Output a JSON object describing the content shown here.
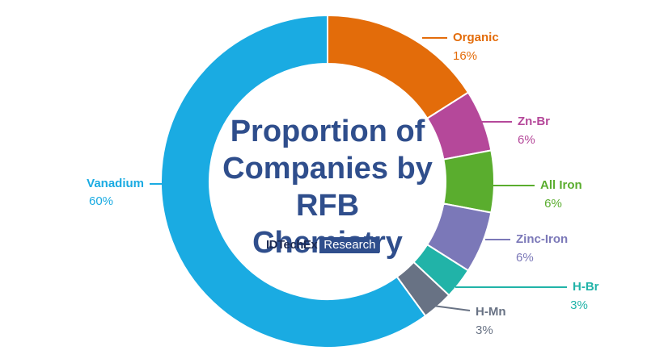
{
  "chart_data": {
    "type": "donut",
    "title": "Proportion of Companies by RFB Chemistry",
    "logo": {
      "brand": "IDTechEx",
      "tag": "Research"
    },
    "categories": [
      "Organic",
      "Zn-Br",
      "All Iron",
      "Zinc-Iron",
      "H-Br",
      "H-Mn",
      "Vanadium"
    ],
    "values": [
      16,
      6,
      6,
      6,
      3,
      3,
      60
    ],
    "value_labels": [
      "16%",
      "6%",
      "6%",
      "6%",
      "3%",
      "3%",
      "60%"
    ],
    "colors": [
      "#e36c0a",
      "#b5489a",
      "#5aad2e",
      "#7b78b8",
      "#21b3a8",
      "#687284",
      "#1aabe2"
    ]
  }
}
